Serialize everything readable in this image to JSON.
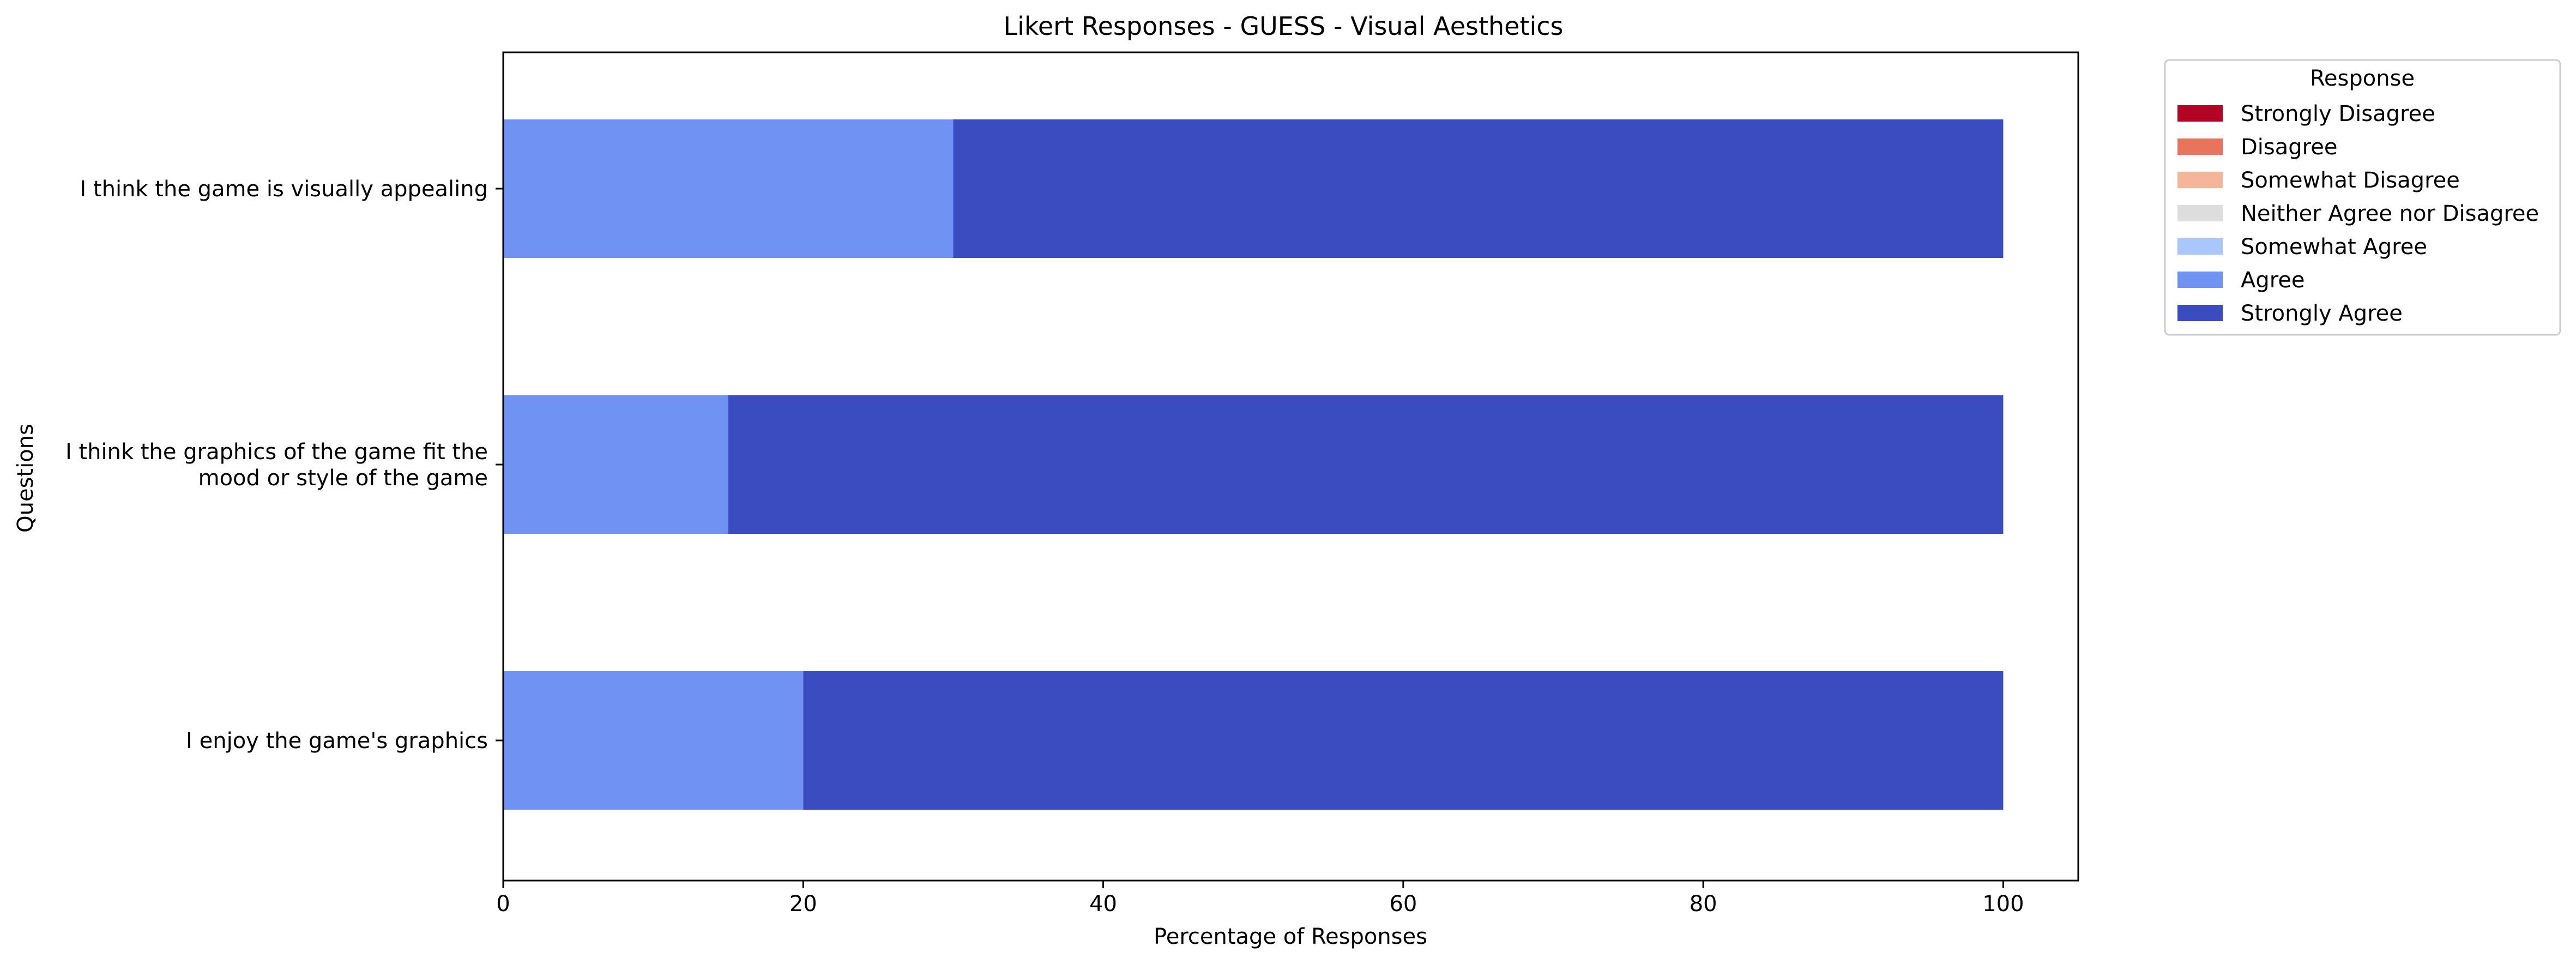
{
  "chart_data": {
    "type": "bar",
    "orientation": "horizontal",
    "stacked": true,
    "title": "Likert Responses - GUESS - Visual Aesthetics",
    "xlabel": "Percentage of Responses",
    "ylabel": "Questions",
    "xlim": [
      0,
      105
    ],
    "xticks": [
      0,
      20,
      40,
      60,
      80,
      100
    ],
    "grid": false,
    "legend_title": "Response",
    "legend_position": "outside-top-right",
    "categories": [
      "I think the game is visually appealing",
      "I think the graphics of the game fit the mood or style of the game",
      "I enjoy the game's graphics"
    ],
    "category_display_lines": [
      [
        "I think the game is visually appealing"
      ],
      [
        "I think the graphics of the game fit the",
        "mood or style of the game"
      ],
      [
        "I enjoy the game's graphics"
      ]
    ],
    "series": [
      {
        "name": "Strongly Disagree",
        "color": "#b40426",
        "values": [
          0,
          0,
          0
        ]
      },
      {
        "name": "Disagree",
        "color": "#e7745b",
        "values": [
          0,
          0,
          0
        ]
      },
      {
        "name": "Somewhat Disagree",
        "color": "#f4b598",
        "values": [
          0,
          0,
          0
        ]
      },
      {
        "name": "Neither Agree nor Disagree",
        "color": "#dddddd",
        "values": [
          0,
          0,
          0
        ]
      },
      {
        "name": "Somewhat Agree",
        "color": "#aac7fd",
        "values": [
          0,
          0,
          0
        ]
      },
      {
        "name": "Agree",
        "color": "#7093f3",
        "values": [
          30,
          15,
          20
        ]
      },
      {
        "name": "Strongly Agree",
        "color": "#3b4cc0",
        "values": [
          70,
          85,
          80
        ]
      }
    ]
  }
}
